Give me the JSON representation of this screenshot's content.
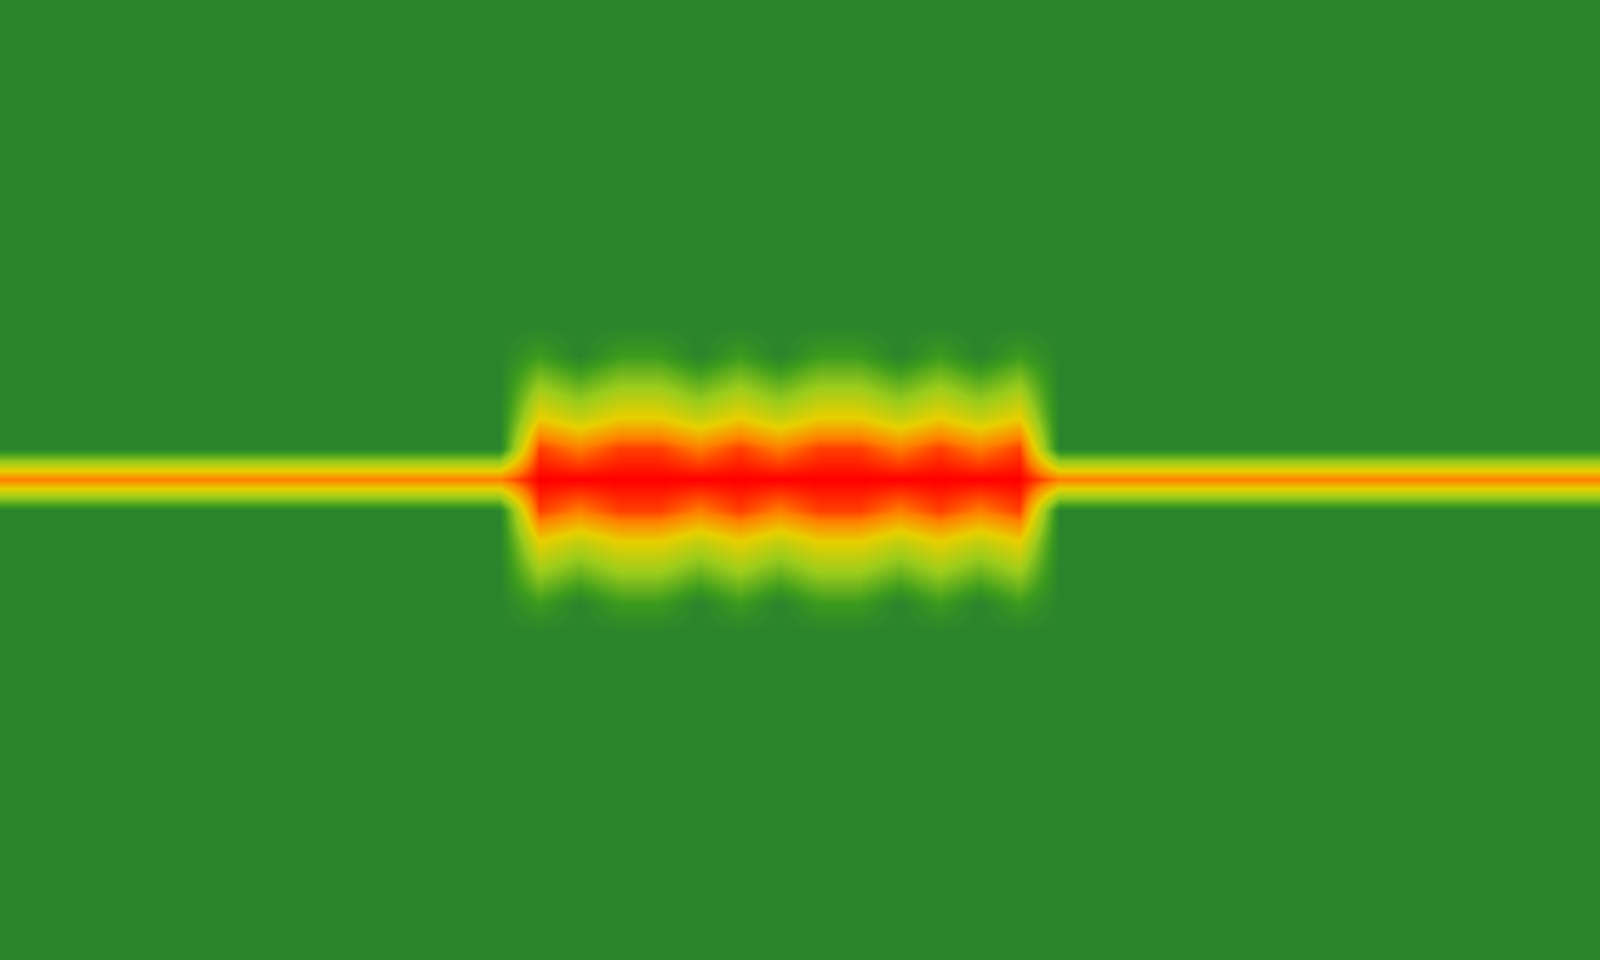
{
  "chart_data": {
    "type": "heatmap",
    "tick_labels": false,
    "color_range": [
      0,
      10
    ],
    "cells": [
      [
        1,
        1,
        1,
        1,
        1,
        1,
        1,
        1,
        1,
        1,
        1,
        1,
        1,
        1,
        1,
        1,
        1,
        1,
        1,
        1,
        1,
        1,
        1,
        1,
        1,
        1,
        1,
        1,
        1,
        1,
        1,
        1,
        1,
        1,
        1,
        1,
        1,
        1,
        1,
        1
      ],
      [
        1,
        1,
        1,
        1,
        1,
        1,
        1,
        1,
        1,
        1,
        1,
        1,
        1,
        1,
        1,
        1,
        1,
        1,
        1,
        1,
        1,
        1,
        1,
        1,
        1,
        1,
        1,
        1,
        1,
        1,
        1,
        1,
        1,
        1,
        1,
        1,
        1,
        1,
        1,
        1
      ],
      [
        1,
        1,
        1,
        1,
        1,
        1,
        1,
        1,
        1,
        1,
        1,
        1,
        1,
        1,
        1,
        1,
        1,
        1,
        1,
        1,
        1,
        1,
        1,
        1,
        1,
        1,
        1,
        1,
        1,
        1,
        1,
        1,
        1,
        1,
        1,
        1,
        1,
        1,
        1,
        1
      ],
      [
        1,
        1,
        1,
        1,
        1,
        1,
        1,
        1,
        1,
        1,
        1,
        1,
        1,
        1,
        1,
        1,
        1,
        1,
        1,
        1,
        1,
        1,
        1,
        1,
        1,
        1,
        1,
        1,
        1,
        1,
        1,
        1,
        1,
        1,
        1,
        1,
        1,
        1,
        1,
        1
      ],
      [
        1,
        1,
        1,
        1,
        1,
        1,
        1,
        1,
        1,
        1,
        1,
        1,
        1,
        1,
        1,
        1,
        1,
        1,
        1,
        1,
        1,
        1,
        1,
        1,
        1,
        1,
        1,
        1,
        1,
        1,
        1,
        1,
        1,
        1,
        1,
        1,
        1,
        1,
        1,
        1
      ],
      [
        1,
        1,
        1,
        1,
        1,
        1,
        1,
        1,
        1,
        1,
        1,
        1,
        1,
        1,
        1,
        1,
        1,
        1,
        1,
        1,
        1,
        1,
        1,
        1,
        1,
        1,
        1,
        1,
        1,
        1,
        1,
        1,
        1,
        1,
        1,
        1,
        1,
        1,
        1,
        1
      ],
      [
        1,
        1,
        1,
        1,
        1,
        1,
        1,
        1,
        1,
        1,
        1,
        1,
        1,
        1,
        1,
        1,
        1,
        1,
        1,
        1,
        1,
        1,
        1,
        1,
        1,
        1,
        1,
        1,
        1,
        1,
        1,
        1,
        1,
        1,
        1,
        1,
        1,
        1,
        1,
        1
      ],
      [
        1,
        1,
        1,
        1,
        1,
        1,
        1,
        1,
        1,
        1,
        1,
        1,
        1,
        1,
        1,
        1,
        1,
        1,
        1,
        1,
        1,
        1,
        1,
        1,
        1,
        1,
        1,
        1,
        1,
        1,
        1,
        1,
        1,
        1,
        1,
        1,
        1,
        1,
        1,
        1
      ],
      [
        1,
        1,
        1,
        1,
        1,
        1,
        1,
        1,
        1,
        1,
        1,
        1,
        1,
        1,
        1,
        1,
        1,
        1,
        1,
        1,
        1,
        1,
        1,
        1,
        1,
        1,
        1,
        1,
        1,
        1,
        1,
        1,
        1,
        1,
        1,
        1,
        1,
        1,
        1,
        1
      ],
      [
        1,
        1,
        1,
        1,
        1,
        1,
        1,
        1,
        1,
        1,
        1,
        1,
        1,
        1,
        1,
        1,
        1,
        1,
        1,
        1,
        1,
        1,
        1,
        1,
        1,
        1,
        1,
        1,
        1,
        1,
        1,
        1,
        1,
        1,
        1,
        1,
        1,
        1,
        1,
        1
      ],
      [
        1,
        1,
        1,
        1,
        1,
        1,
        1,
        1,
        1,
        1,
        1,
        1,
        1,
        1,
        1,
        1,
        1,
        1,
        1,
        1,
        1,
        1,
        1,
        1,
        1,
        1,
        1,
        1,
        1,
        1,
        1,
        1,
        1,
        1,
        1,
        1,
        1,
        1,
        1,
        1
      ],
      [
        1,
        1,
        1,
        1,
        1,
        1,
        1,
        1,
        1,
        1,
        1,
        1,
        1,
        2,
        1,
        2,
        2,
        1,
        2,
        1,
        2,
        2,
        1,
        2,
        1,
        2,
        1,
        1,
        1,
        1,
        1,
        1,
        1,
        1,
        1,
        1,
        1,
        1,
        1,
        1
      ],
      [
        1,
        1,
        1,
        1,
        1,
        1,
        1,
        1,
        1,
        1,
        1,
        1,
        1,
        4,
        3,
        4,
        4,
        3,
        4,
        3,
        4,
        4,
        3,
        4,
        3,
        4,
        1,
        1,
        1,
        1,
        1,
        1,
        1,
        1,
        1,
        1,
        1,
        1,
        1,
        1
      ],
      [
        1,
        1,
        1,
        1,
        1,
        1,
        1,
        1,
        1,
        1,
        1,
        1,
        1,
        6,
        5,
        6,
        6,
        5,
        6,
        5,
        6,
        6,
        5,
        6,
        5,
        6,
        1,
        1,
        1,
        1,
        1,
        1,
        1,
        1,
        1,
        1,
        1,
        1,
        1,
        1
      ],
      [
        1,
        1,
        1,
        1,
        1,
        1,
        1,
        1,
        1,
        1,
        1,
        1,
        1,
        9,
        8,
        9,
        9,
        8,
        9,
        8,
        9,
        9,
        8,
        9,
        8,
        9,
        1,
        1,
        1,
        1,
        1,
        1,
        1,
        1,
        1,
        1,
        1,
        1,
        1,
        1
      ],
      [
        8,
        8,
        8,
        8,
        8,
        8,
        8,
        8,
        8,
        8,
        8,
        8,
        8,
        10,
        10,
        10,
        10,
        10,
        10,
        10,
        10,
        10,
        10,
        10,
        10,
        10,
        8,
        8,
        8,
        8,
        8,
        8,
        8,
        8,
        8,
        8,
        8,
        8,
        8,
        8
      ],
      [
        1,
        1,
        1,
        1,
        1,
        1,
        1,
        1,
        1,
        1,
        1,
        1,
        1,
        9,
        8,
        9,
        9,
        8,
        9,
        8,
        9,
        9,
        8,
        9,
        8,
        9,
        1,
        1,
        1,
        1,
        1,
        1,
        1,
        1,
        1,
        1,
        1,
        1,
        1,
        1
      ],
      [
        1,
        1,
        1,
        1,
        1,
        1,
        1,
        1,
        1,
        1,
        1,
        1,
        1,
        6,
        5,
        6,
        6,
        5,
        6,
        5,
        6,
        6,
        5,
        6,
        5,
        6,
        1,
        1,
        1,
        1,
        1,
        1,
        1,
        1,
        1,
        1,
        1,
        1,
        1,
        1
      ],
      [
        1,
        1,
        1,
        1,
        1,
        1,
        1,
        1,
        1,
        1,
        1,
        1,
        1,
        4,
        3,
        4,
        4,
        3,
        4,
        3,
        4,
        4,
        3,
        4,
        3,
        4,
        1,
        1,
        1,
        1,
        1,
        1,
        1,
        1,
        1,
        1,
        1,
        1,
        1,
        1
      ],
      [
        1,
        1,
        1,
        1,
        1,
        1,
        1,
        1,
        1,
        1,
        1,
        1,
        1,
        2,
        1,
        2,
        2,
        1,
        2,
        1,
        2,
        2,
        1,
        2,
        1,
        2,
        1,
        1,
        1,
        1,
        1,
        1,
        1,
        1,
        1,
        1,
        1,
        1,
        1,
        1
      ],
      [
        1,
        1,
        1,
        1,
        1,
        1,
        1,
        1,
        1,
        1,
        1,
        1,
        1,
        1,
        1,
        1,
        1,
        1,
        1,
        1,
        1,
        1,
        1,
        1,
        1,
        1,
        1,
        1,
        1,
        1,
        1,
        1,
        1,
        1,
        1,
        1,
        1,
        1,
        1,
        1
      ],
      [
        1,
        1,
        1,
        1,
        1,
        1,
        1,
        1,
        1,
        1,
        1,
        1,
        1,
        1,
        1,
        1,
        1,
        1,
        1,
        1,
        1,
        1,
        1,
        1,
        1,
        1,
        1,
        1,
        1,
        1,
        1,
        1,
        1,
        1,
        1,
        1,
        1,
        1,
        1,
        1
      ],
      [
        1,
        1,
        1,
        1,
        1,
        1,
        1,
        1,
        1,
        1,
        1,
        1,
        1,
        1,
        1,
        1,
        1,
        1,
        1,
        1,
        1,
        1,
        1,
        1,
        1,
        1,
        1,
        1,
        1,
        1,
        1,
        1,
        1,
        1,
        1,
        1,
        1,
        1,
        1,
        1
      ],
      [
        1,
        1,
        1,
        1,
        1,
        1,
        1,
        1,
        1,
        1,
        1,
        1,
        1,
        1,
        1,
        1,
        1,
        1,
        1,
        1,
        1,
        1,
        1,
        1,
        1,
        1,
        1,
        1,
        1,
        1,
        1,
        1,
        1,
        1,
        1,
        1,
        1,
        1,
        1,
        1
      ],
      [
        1,
        1,
        1,
        1,
        1,
        1,
        1,
        1,
        1,
        1,
        1,
        1,
        1,
        1,
        1,
        1,
        1,
        1,
        1,
        1,
        1,
        1,
        1,
        1,
        1,
        1,
        1,
        1,
        1,
        1,
        1,
        1,
        1,
        1,
        1,
        1,
        1,
        1,
        1,
        1
      ],
      [
        1,
        1,
        1,
        1,
        1,
        1,
        1,
        1,
        1,
        1,
        1,
        1,
        1,
        1,
        1,
        1,
        1,
        1,
        1,
        1,
        1,
        1,
        1,
        1,
        1,
        1,
        1,
        1,
        1,
        1,
        1,
        1,
        1,
        1,
        1,
        1,
        1,
        1,
        1,
        1
      ],
      [
        1,
        1,
        1,
        1,
        1,
        1,
        1,
        1,
        1,
        1,
        1,
        1,
        1,
        1,
        1,
        1,
        1,
        1,
        1,
        1,
        1,
        1,
        1,
        1,
        1,
        1,
        1,
        1,
        1,
        1,
        1,
        1,
        1,
        1,
        1,
        1,
        1,
        1,
        1,
        1
      ],
      [
        1,
        1,
        1,
        1,
        1,
        1,
        1,
        1,
        1,
        1,
        1,
        1,
        1,
        1,
        1,
        1,
        1,
        1,
        1,
        1,
        1,
        1,
        1,
        1,
        1,
        1,
        1,
        1,
        1,
        1,
        1,
        1,
        1,
        1,
        1,
        1,
        1,
        1,
        1,
        1
      ],
      [
        1,
        1,
        1,
        1,
        1,
        1,
        1,
        1,
        1,
        1,
        1,
        1,
        1,
        1,
        1,
        1,
        1,
        1,
        1,
        1,
        1,
        1,
        1,
        1,
        1,
        1,
        1,
        1,
        1,
        1,
        1,
        1,
        1,
        1,
        1,
        1,
        1,
        1,
        1,
        1
      ],
      [
        1,
        1,
        1,
        1,
        1,
        1,
        1,
        1,
        1,
        1,
        1,
        1,
        1,
        1,
        1,
        1,
        1,
        1,
        1,
        1,
        1,
        1,
        1,
        1,
        1,
        1,
        1,
        1,
        1,
        1,
        1,
        1,
        1,
        1,
        1,
        1,
        1,
        1,
        1,
        1
      ],
      [
        1,
        1,
        1,
        1,
        1,
        1,
        1,
        1,
        1,
        1,
        1,
        1,
        1,
        1,
        1,
        1,
        1,
        1,
        1,
        1,
        1,
        1,
        1,
        1,
        1,
        1,
        1,
        1,
        1,
        1,
        1,
        1,
        1,
        1,
        1,
        1,
        1,
        1,
        1,
        1
      ]
    ]
  }
}
